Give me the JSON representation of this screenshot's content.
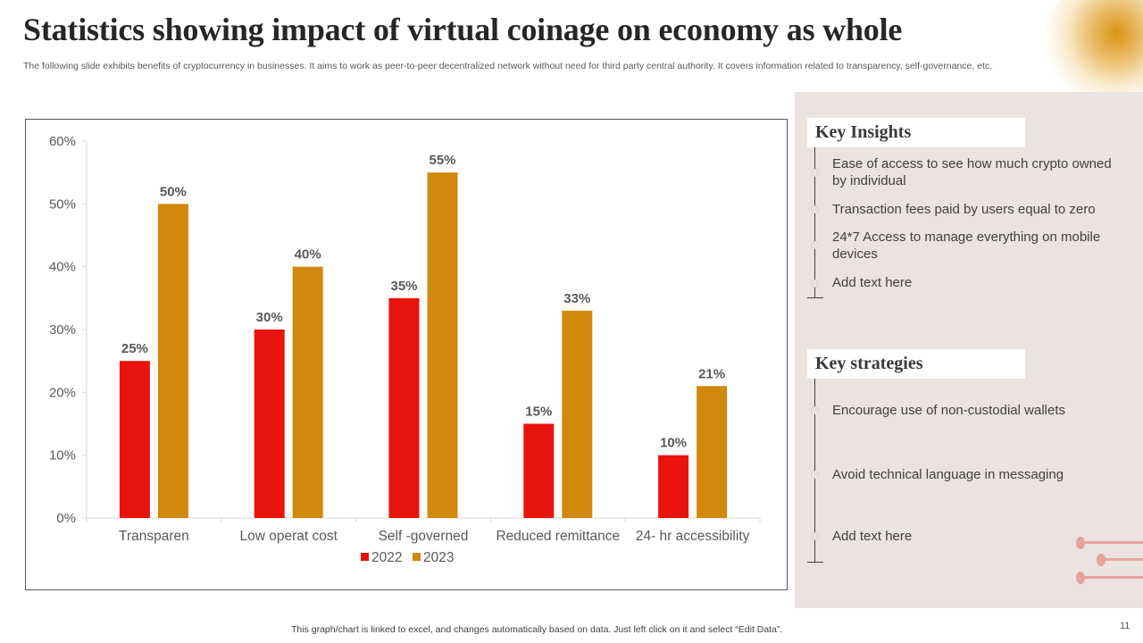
{
  "slide": {
    "title": "Statistics showing impact of virtual coinage on economy as whole",
    "subtitle": "The following slide exhibits benefits of cryptocurrency in businesses. It aims to work as peer-to-peer decentralized network without need for third party central authority. It covers information related to transparency, self-governance, etc.",
    "footer_note": "This graph/chart is linked to excel, and changes automatically based on data. Just left click on it and select “Edit Data”.",
    "page_number": "11"
  },
  "colors": {
    "series_2022": "#e8130c",
    "series_2023": "#d0890a",
    "panel_bg": "#ebe3e0",
    "accent_deco": "#e8a39c"
  },
  "chart_data": {
    "type": "bar",
    "title": "",
    "xlabel": "",
    "ylabel": "",
    "categories": [
      "Transparen",
      "Low operat cost",
      "Self -governed",
      "Reduced remittance",
      "24- hr accessibility"
    ],
    "series": [
      {
        "name": "2022",
        "values": [
          25,
          30,
          35,
          15,
          10
        ],
        "labels": [
          "25%",
          "30%",
          "35%",
          "15%",
          "10%"
        ]
      },
      {
        "name": "2023",
        "values": [
          50,
          40,
          55,
          33,
          21
        ],
        "labels": [
          "50%",
          "40%",
          "55%",
          "33%",
          "21%"
        ]
      }
    ],
    "ylim": [
      0,
      60
    ],
    "yticks": [
      0,
      10,
      20,
      30,
      40,
      50,
      60
    ],
    "ytick_labels": [
      "0%",
      "10%",
      "20%",
      "30%",
      "40%",
      "50%",
      "60%"
    ],
    "grid": false,
    "legend": "bottom-center",
    "data_labels": true
  },
  "key_insights": {
    "heading": "Key Insights",
    "items": [
      "Ease of access to see how much crypto owned by individual",
      "Transaction fees paid by users equal to zero",
      "24*7 Access to manage everything on mobile devices",
      "Add text here"
    ]
  },
  "key_strategies": {
    "heading": "Key strategies",
    "items": [
      "Encourage use of non-custodial wallets",
      "Avoid technical language in messaging",
      "Add text here"
    ]
  }
}
